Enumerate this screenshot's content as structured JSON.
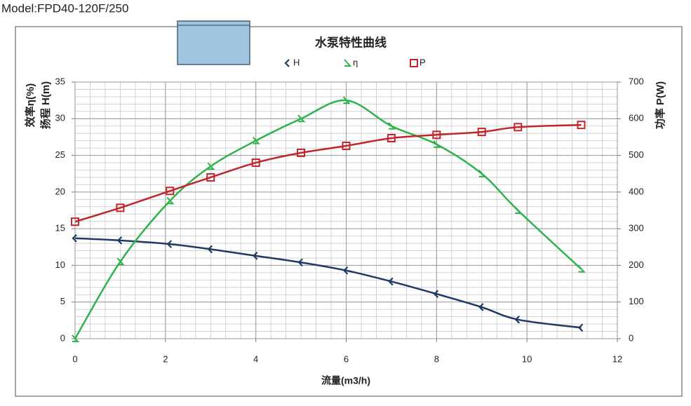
{
  "header": {
    "model": "Model:FPD40-120F/250"
  },
  "chart_data": {
    "type": "line",
    "title": "水泵特性曲线",
    "x_label": "流量(m3/h)",
    "y_label": "扬程 H(m)",
    "y_label_2": "效率η(%)",
    "y2_label": "功率 P(W)",
    "x": [
      0,
      1,
      2.1,
      3,
      4,
      5,
      6,
      7,
      8,
      9,
      9.8,
      11.2
    ],
    "series": [
      {
        "name": "H",
        "color": "#1f3b63",
        "marker": "diamond",
        "values": [
          13.7,
          13.4,
          12.9,
          12.2,
          11.3,
          10.4,
          9.3,
          7.8,
          6.1,
          4.3,
          2.6,
          1.5
        ]
      },
      {
        "name": "η",
        "color": "#2db34a",
        "marker": "angle",
        "values": [
          0,
          10.5,
          18.8,
          23.5,
          27,
          30,
          32.5,
          29,
          26.5,
          22.5,
          17.5,
          9.5
        ]
      },
      {
        "name": "P",
        "color": "#c0262b",
        "marker": "square",
        "axis": "y2",
        "values": [
          319,
          357,
          403,
          440,
          480,
          507,
          526,
          547,
          556,
          564,
          577,
          583
        ]
      }
    ],
    "xlim": [
      0,
      12
    ],
    "xticks": [
      0,
      2,
      4,
      6,
      8,
      10,
      12
    ],
    "ylim": [
      0,
      35
    ],
    "yticks": [
      0,
      5,
      10,
      15,
      20,
      25,
      30,
      35
    ],
    "y2lim": [
      0,
      700
    ],
    "y2ticks": [
      0,
      100,
      200,
      300,
      400,
      500,
      600,
      700
    ],
    "grid": true
  }
}
